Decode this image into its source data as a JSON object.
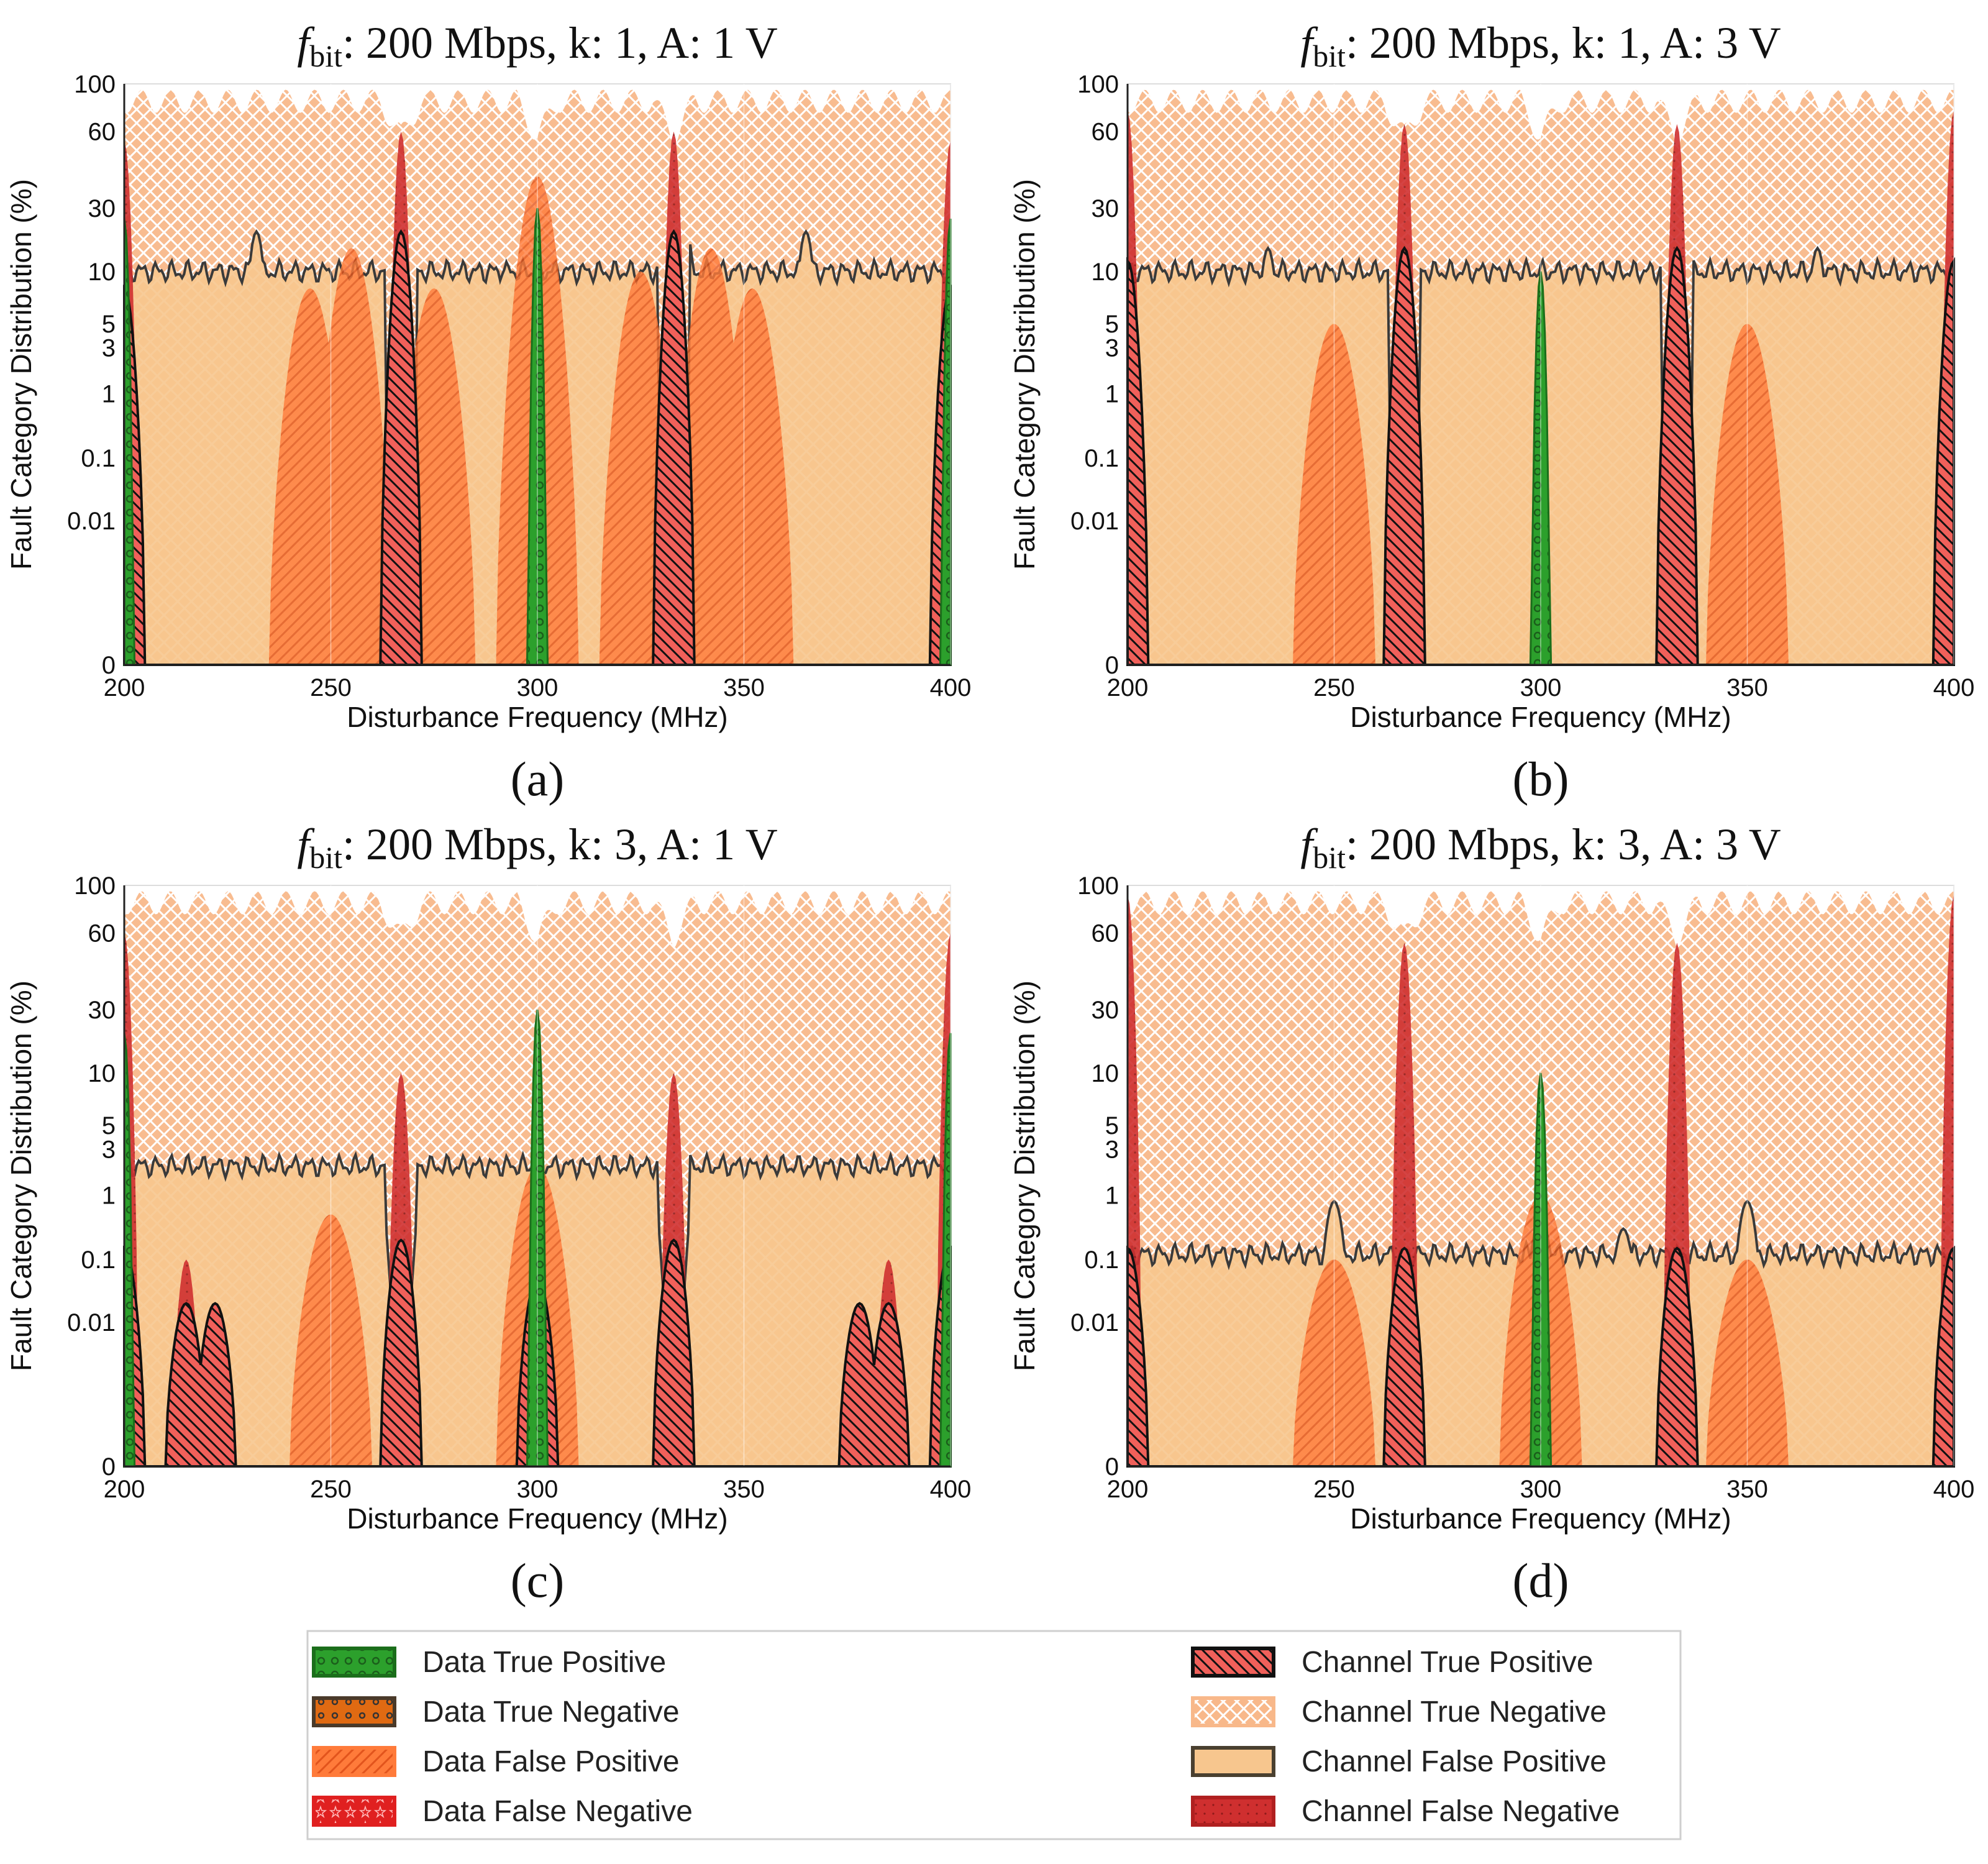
{
  "colors": {
    "data_true_positive": "#2ca02c",
    "data_true_negative": "#e06a12",
    "data_false_positive": "#ff7b3a",
    "data_false_negative": "#e02020",
    "channel_true_positive": "#f0605a",
    "channel_true_negative": "#f8b88a",
    "channel_false_positive": "#f7c68e",
    "channel_false_negative": "#cf2f2f",
    "outline": "#3a3a3a"
  },
  "legend": {
    "items": [
      {
        "label": "Data True Positive",
        "key": "data_true_positive"
      },
      {
        "label": "Data True Negative",
        "key": "data_true_negative"
      },
      {
        "label": "Data False Positive",
        "key": "data_false_positive"
      },
      {
        "label": "Data False Negative",
        "key": "data_false_negative"
      },
      {
        "label": "Channel True Positive",
        "key": "channel_true_positive"
      },
      {
        "label": "Channel True Negative",
        "key": "channel_true_negative"
      },
      {
        "label": "Channel False Positive",
        "key": "channel_false_positive"
      },
      {
        "label": "Channel False Negative",
        "key": "channel_false_negative"
      }
    ]
  },
  "chart_data": [
    {
      "type": "area",
      "panel_label": "(a)",
      "title_prefix": "f",
      "title_sub": "bit",
      "title_rest": ": 200 Mbps, k: 1, A: 1 V",
      "xlabel": "Disturbance Frequency (MHz)",
      "ylabel": "Fault Category Distribution (%)",
      "xlim": [
        200,
        400
      ],
      "xticks": [
        "200",
        "250",
        "300",
        "350",
        "400"
      ],
      "yticks": [
        "0",
        "0.01",
        "0.1",
        "1",
        "3",
        "5",
        "10",
        "30",
        "60",
        "100"
      ],
      "y_scale": "symlog",
      "channel_false_positive_level": 10,
      "channel_false_positive_peaks": [
        [
          232,
          20
        ],
        [
          265,
          20
        ],
        [
          292,
          10
        ],
        [
          336,
          20
        ],
        [
          365,
          20
        ]
      ],
      "data_false_positive_peaks": [
        [
          300,
          40
        ],
        [
          245,
          8
        ],
        [
          255,
          15
        ],
        [
          275,
          8
        ],
        [
          325,
          10
        ],
        [
          342,
          15
        ],
        [
          352,
          8
        ]
      ],
      "channel_true_positive_peaks": [
        [
          267,
          20
        ],
        [
          333,
          20
        ],
        [
          200,
          8
        ],
        [
          400,
          8
        ]
      ],
      "channel_false_negative_peaks": [
        [
          267,
          60
        ],
        [
          333,
          60
        ],
        [
          200,
          55
        ],
        [
          400,
          55
        ]
      ],
      "data_true_positive_peaks": [
        [
          300,
          30
        ],
        [
          200,
          25
        ],
        [
          400,
          25
        ]
      ]
    },
    {
      "type": "area",
      "panel_label": "(b)",
      "title_prefix": "f",
      "title_sub": "bit",
      "title_rest": ": 200 Mbps, k: 1, A: 3 V",
      "xlabel": "Disturbance Frequency (MHz)",
      "ylabel": "Fault Category Distribution (%)",
      "xlim": [
        200,
        400
      ],
      "xticks": [
        "200",
        "250",
        "300",
        "350",
        "400"
      ],
      "yticks": [
        "0",
        "0.01",
        "0.1",
        "1",
        "3",
        "5",
        "10",
        "30",
        "60",
        "100"
      ],
      "y_scale": "symlog",
      "channel_false_positive_level": 10,
      "channel_false_positive_peaks": [
        [
          234,
          15
        ],
        [
          265,
          15
        ],
        [
          300,
          10
        ],
        [
          336,
          15
        ],
        [
          367,
          15
        ]
      ],
      "data_false_positive_peaks": [
        [
          250,
          5
        ],
        [
          350,
          5
        ]
      ],
      "channel_true_positive_peaks": [
        [
          267,
          15
        ],
        [
          333,
          15
        ],
        [
          200,
          12
        ],
        [
          400,
          12
        ]
      ],
      "channel_false_negative_peaks": [
        [
          267,
          65
        ],
        [
          333,
          65
        ],
        [
          200,
          75
        ],
        [
          400,
          75
        ]
      ],
      "data_true_positive_peaks": [
        [
          300,
          10
        ]
      ]
    },
    {
      "type": "area",
      "panel_label": "(c)",
      "title_prefix": "f",
      "title_sub": "bit",
      "title_rest": ": 200 Mbps, k: 3, A: 1 V",
      "xlabel": "Disturbance Frequency (MHz)",
      "ylabel": "Fault Category Distribution (%)",
      "xlim": [
        200,
        400
      ],
      "xticks": [
        "200",
        "250",
        "300",
        "350",
        "400"
      ],
      "yticks": [
        "0",
        "0.01",
        "0.1",
        "1",
        "3",
        "5",
        "10",
        "30",
        "60",
        "100"
      ],
      "y_scale": "symlog",
      "channel_false_positive_level": 2,
      "channel_false_positive_peaks": [],
      "data_false_positive_peaks": [
        [
          250,
          0.5
        ],
        [
          300,
          2
        ]
      ],
      "channel_true_positive_peaks": [
        [
          267,
          0.2
        ],
        [
          333,
          0.2
        ],
        [
          200,
          0.15
        ],
        [
          400,
          0.15
        ],
        [
          215,
          0.02
        ],
        [
          222,
          0.02
        ],
        [
          378,
          0.02
        ],
        [
          385,
          0.02
        ],
        [
          300,
          0.05
        ]
      ],
      "channel_false_negative_peaks": [
        [
          267,
          10
        ],
        [
          333,
          10
        ],
        [
          200,
          60
        ],
        [
          400,
          60
        ],
        [
          215,
          0.1
        ],
        [
          385,
          0.1
        ]
      ],
      "data_true_positive_peaks": [
        [
          300,
          30
        ],
        [
          200,
          20
        ],
        [
          400,
          20
        ]
      ]
    },
    {
      "type": "area",
      "panel_label": "(d)",
      "title_prefix": "f",
      "title_sub": "bit",
      "title_rest": ": 200 Mbps, k: 3, A: 3 V",
      "xlabel": "Disturbance Frequency (MHz)",
      "ylabel": "Fault Category Distribution (%)",
      "xlim": [
        200,
        400
      ],
      "xticks": [
        "200",
        "250",
        "300",
        "350",
        "400"
      ],
      "yticks": [
        "0",
        "0.01",
        "0.1",
        "1",
        "3",
        "5",
        "10",
        "30",
        "60",
        "100"
      ],
      "y_scale": "symlog",
      "channel_false_positive_level": 0.12,
      "channel_false_positive_peaks": [
        [
          250,
          0.8
        ],
        [
          300,
          0.5
        ],
        [
          320,
          0.3
        ],
        [
          350,
          0.8
        ]
      ],
      "data_false_positive_peaks": [
        [
          250,
          0.1
        ],
        [
          300,
          1
        ],
        [
          350,
          0.1
        ]
      ],
      "channel_true_positive_peaks": [
        [
          267,
          0.15
        ],
        [
          333,
          0.15
        ],
        [
          200,
          0.15
        ],
        [
          400,
          0.15
        ]
      ],
      "channel_false_negative_peaks": [
        [
          267,
          55
        ],
        [
          333,
          55
        ],
        [
          200,
          90
        ],
        [
          400,
          90
        ]
      ],
      "data_true_positive_peaks": [
        [
          300,
          10
        ]
      ]
    }
  ]
}
